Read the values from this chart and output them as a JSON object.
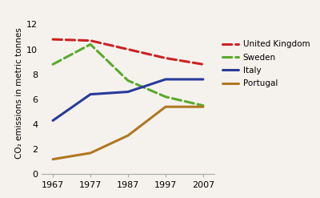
{
  "years": [
    1967,
    1977,
    1987,
    1997,
    2007
  ],
  "series": {
    "United Kingdom": [
      10.8,
      10.7,
      10.0,
      9.3,
      8.8
    ],
    "Sweden": [
      8.8,
      10.4,
      7.5,
      6.2,
      5.5
    ],
    "Italy": [
      4.3,
      6.4,
      6.6,
      7.6,
      7.6
    ],
    "Portugal": [
      1.2,
      1.7,
      3.1,
      5.4,
      5.4
    ]
  },
  "colors": {
    "United Kingdom": "#cc2222",
    "Sweden": "#5aaa2a",
    "Italy": "#2a3a9a",
    "Portugal": "#b07820"
  },
  "linestyles": {
    "United Kingdom": "--",
    "Sweden": "--",
    "Italy": "-",
    "Portugal": "-"
  },
  "ylabel": "CO₂ emissions in metric tonnes",
  "xlim": [
    1964,
    2010
  ],
  "ylim": [
    0,
    13
  ],
  "yticks": [
    0,
    2,
    4,
    6,
    8,
    10,
    12
  ],
  "xticks": [
    1967,
    1977,
    1987,
    1997,
    2007
  ],
  "background_color": "#f5f2ee",
  "linewidth": 2.2,
  "tick_fontsize": 8,
  "ylabel_fontsize": 7.5,
  "legend_fontsize": 7.5
}
